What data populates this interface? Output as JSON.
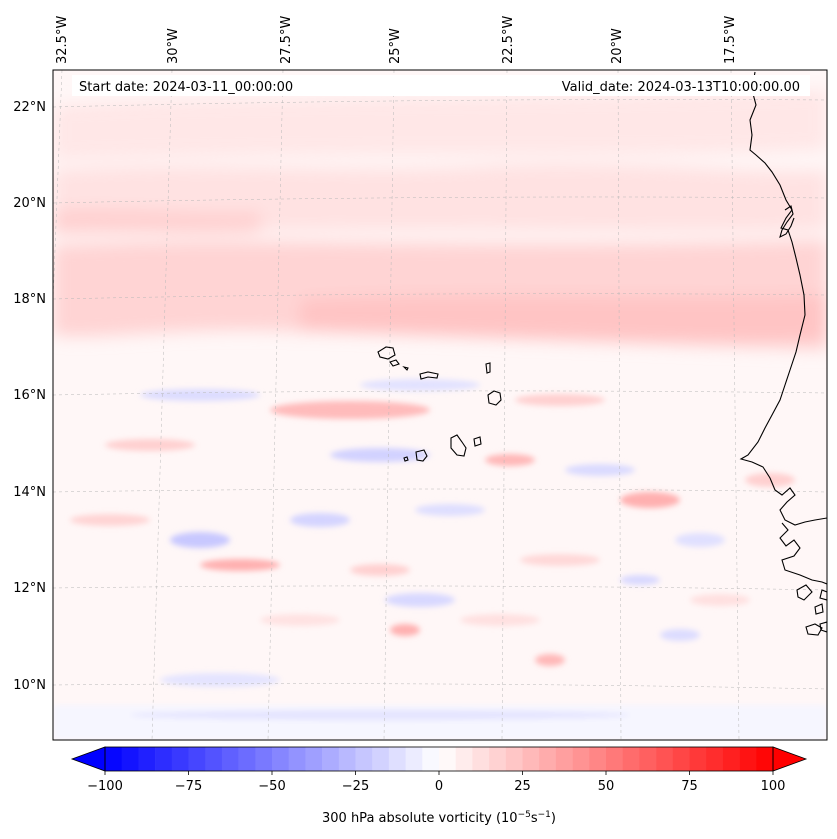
{
  "header": {
    "start_date": "Start date: 2024-03-11_00:00:00",
    "valid_date": "Valid_date: 2024-03-13T10:00:00.00"
  },
  "map": {
    "lon_labels": [
      "32.5°W",
      "30°W",
      "27.5°W",
      "25°W",
      "22.5°W",
      "20°W",
      "17.5°W"
    ],
    "lat_labels": [
      "22°N",
      "20°N",
      "18°N",
      "16°N",
      "14°N",
      "12°N",
      "10°N"
    ],
    "lon_values": [
      -32.5,
      -30,
      -27.5,
      -25,
      -22.5,
      -20,
      -17.5
    ],
    "lat_values": [
      22,
      20,
      18,
      16,
      14,
      12,
      10
    ],
    "gridlines": true,
    "coastline_color": "#000000",
    "features": [
      "cape-verde-islands",
      "west-africa-coastline"
    ]
  },
  "colorbar": {
    "label": "300 hPa absolute vorticity (10",
    "label_exp1": "−5",
    "label_mid": "s",
    "label_exp2": "−1",
    "label_end": ")",
    "ticks": [
      "−100",
      "−75",
      "−50",
      "−25",
      "0",
      "25",
      "50",
      "75",
      "100"
    ],
    "tick_values": [
      -100,
      -75,
      -50,
      -25,
      0,
      25,
      50,
      75,
      100
    ],
    "min": -100,
    "max": 100,
    "step": 5,
    "extend": "both",
    "colormap": "bwr",
    "colors": {
      "low": "#0000ff",
      "mid": "#ffffff",
      "high": "#ff0000"
    }
  }
}
